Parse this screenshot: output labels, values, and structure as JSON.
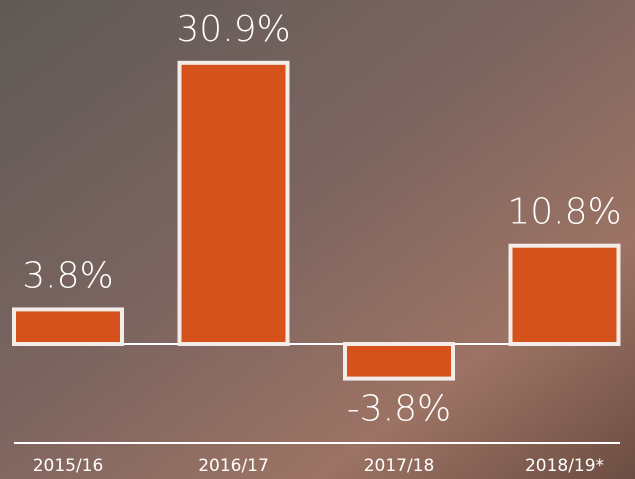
{
  "chart_data": {
    "type": "bar",
    "categories": [
      "2015/16",
      "2016/17",
      "2017/18",
      "2018/19*"
    ],
    "values": [
      3.8,
      30.9,
      -3.8,
      10.8
    ],
    "value_labels": [
      "3.8%",
      "30.9%",
      "-3.8%",
      "10.8%"
    ],
    "color": "#d6521c"
  }
}
